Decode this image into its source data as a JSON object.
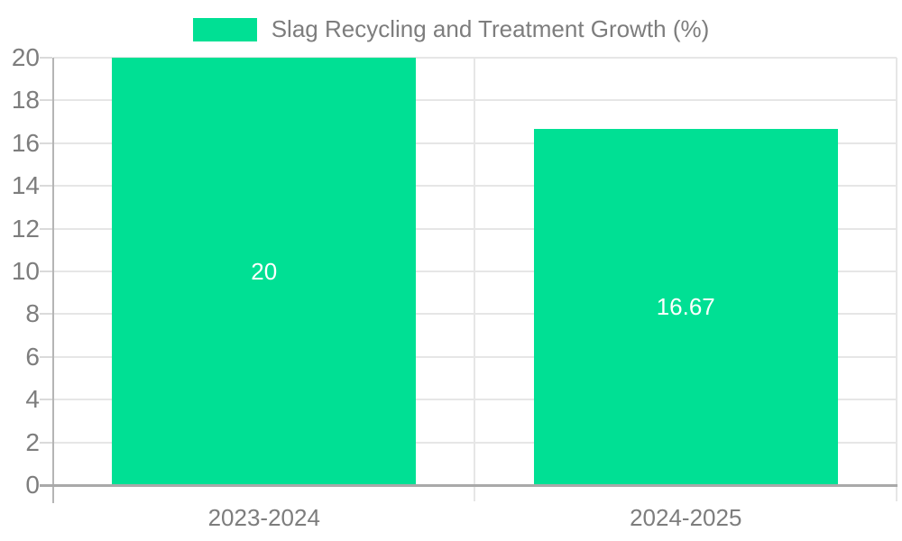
{
  "chart_data": {
    "type": "bar",
    "title": "Slag Recycling and Treatment Growth (%)",
    "categories": [
      "2023-2024",
      "2024-2025"
    ],
    "series": [
      {
        "name": "Slag Recycling and Treatment Growth (%)",
        "values": [
          20,
          16.67
        ]
      }
    ],
    "data_labels": [
      "20",
      "16.67"
    ],
    "xlabel": "",
    "ylabel": "",
    "ylim": [
      0,
      20
    ],
    "yticks": [
      0,
      2,
      4,
      6,
      8,
      10,
      12,
      14,
      16,
      18,
      20
    ],
    "grid": true,
    "legend_position": "top",
    "colors": {
      "bar": "#00E094",
      "data_label": "#ffffff",
      "text_gray": "#7d7d7d",
      "gridline": "#e6e6e6",
      "tick": "#dadada",
      "axis_line": "#b5b5b5",
      "baseline": "#a9a9a9",
      "background": "#ffffff"
    }
  }
}
